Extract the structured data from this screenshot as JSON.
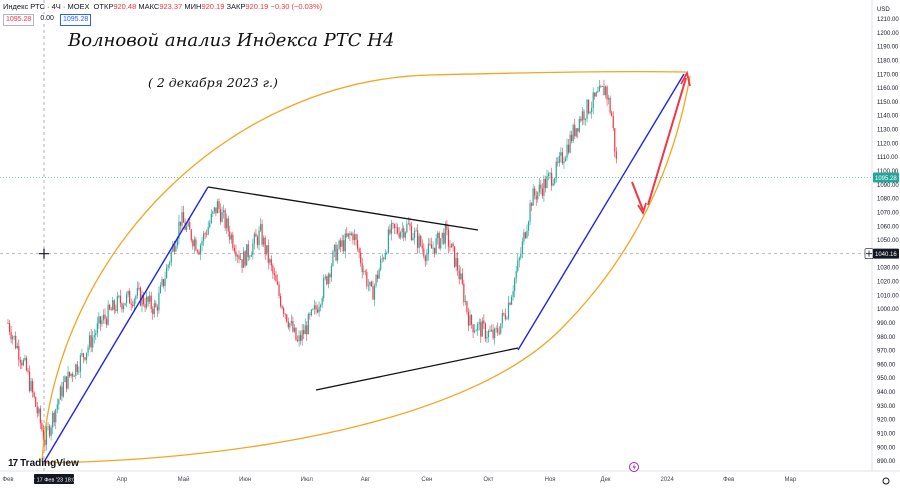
{
  "header": {
    "symbol": "Индекс РТС · 4Ч · MOEX",
    "open_label": "ОТКР",
    "open": "920.48",
    "high_label": "МАКС",
    "high": "923.37",
    "low_label": "МИН",
    "low": "920.19",
    "close_label": "ЗАКР",
    "close": "920.19",
    "change": "−0.30 (−0.03%)",
    "pill_left": "1095.28",
    "pill_mid": "0.00",
    "pill_right": "1095.28"
  },
  "annotations": {
    "title": "Волновой анализ Индекса РТС Н4",
    "date": "( 2 декабря 2023 г.)"
  },
  "brand": {
    "name": "TradingView",
    "logo_text": "17"
  },
  "currency": "USD",
  "price_tags": {
    "last": "1095.28",
    "crosshair": "1040.16"
  },
  "crosshair_time": "пт 17 Фев '23  18:00",
  "colors": {
    "up": "#26a69a",
    "down": "#f23645",
    "blue_line": "#2323e6",
    "orange_curve": "#f4a521",
    "red_arrow": "#f23645"
  },
  "chart_data": {
    "type": "candlestick",
    "title": "Волновой анализ Индекса РТС Н4",
    "ylim": [
      885,
      1218
    ],
    "y_ticks": [
      890,
      900,
      910,
      920,
      930,
      940,
      950,
      960,
      970,
      980,
      990,
      1000,
      1010,
      1020,
      1030,
      1040,
      1050,
      1060,
      1070,
      1080,
      1090,
      1100,
      1110,
      1120,
      1130,
      1140,
      1150,
      1160,
      1170,
      1180,
      1190,
      1200,
      1210
    ],
    "x_labels": [
      "Фев",
      "Апр",
      "Май",
      "Июн",
      "Июл",
      "Авг",
      "Сен",
      "Окт",
      "Ноя",
      "Дек",
      "2024",
      "Фев",
      "Мар"
    ],
    "x_label_index": [
      0,
      1.85,
      2.85,
      3.85,
      4.85,
      5.8,
      6.8,
      7.8,
      8.8,
      9.7,
      10.7,
      11.7,
      12.7
    ],
    "price_path_months": [
      0,
      0.3,
      0.6,
      0.9,
      1.2,
      1.5,
      1.8,
      2.1,
      2.4,
      2.8,
      3.1,
      3.4,
      3.8,
      4.1,
      4.4,
      4.7,
      5.0,
      5.3,
      5.6,
      5.9,
      6.2,
      6.5,
      6.8,
      7.1,
      7.3,
      7.5,
      7.7,
      7.9,
      8.1,
      8.3,
      8.5,
      8.7,
      8.9,
      9.1,
      9.3,
      9.5,
      9.7,
      9.8,
      9.9
    ],
    "price_path_values": [
      990,
      955,
      905,
      945,
      965,
      990,
      1005,
      1010,
      1000,
      1065,
      1045,
      1075,
      1035,
      1055,
      1010,
      975,
      1000,
      1040,
      1055,
      1010,
      1055,
      1060,
      1040,
      1055,
      1030,
      990,
      985,
      980,
      1000,
      1035,
      1080,
      1090,
      1100,
      1120,
      1140,
      1150,
      1160,
      1140,
      1095
    ],
    "last_price": 1095.28
  }
}
